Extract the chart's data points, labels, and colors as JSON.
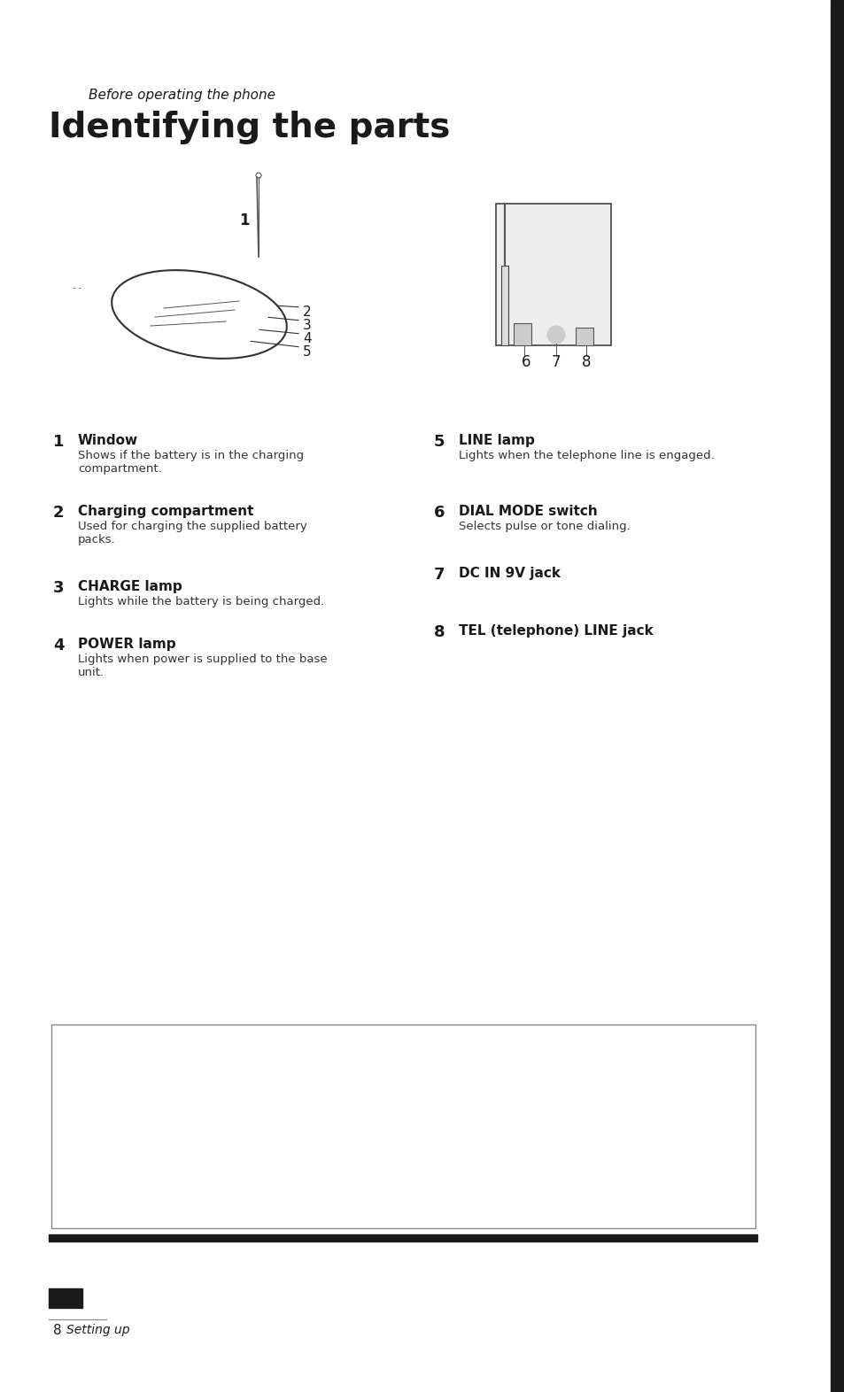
{
  "page_bg": "#ffffff",
  "section_label": "Before operating the phone",
  "title": "Identifying the parts",
  "title_fontsize": 28,
  "section_label_fontsize": 11,
  "black_bar_color": "#1a1a1a",
  "black_square_color": "#1a1a1a",
  "items_left": [
    {
      "num": "1",
      "head": "Window",
      "body": "Shows if the battery is in the charging\ncompartment."
    },
    {
      "num": "2",
      "head": "Charging compartment",
      "body": "Used for charging the supplied battery\npacks."
    },
    {
      "num": "3",
      "head": "CHARGE lamp",
      "body": "Lights while the battery is being charged."
    },
    {
      "num": "4",
      "head": "POWER lamp",
      "body": "Lights when power is supplied to the base\nunit."
    }
  ],
  "items_right": [
    {
      "num": "5",
      "head": "LINE lamp",
      "body": "Lights when the telephone line is engaged."
    },
    {
      "num": "6",
      "head": "DIAL MODE switch",
      "body": "Selects pulse or tone dialing."
    },
    {
      "num": "7",
      "head": "DC IN 9V jack",
      "body": ""
    },
    {
      "num": "8",
      "head": "TEL (telephone) LINE jack",
      "body": ""
    }
  ],
  "footer_text": "8",
  "footer_label": "Setting up",
  "right_bar_color": "#1a1a1a",
  "diagram_box_color": "#cccccc",
  "text_color": "#1a1a1a"
}
